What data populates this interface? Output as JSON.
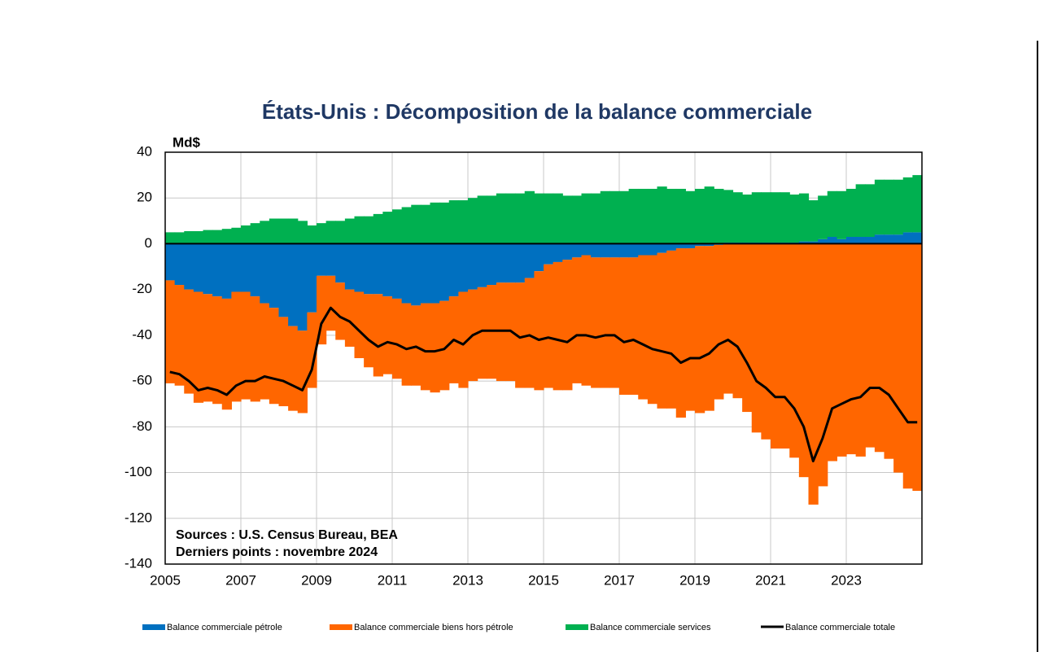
{
  "chart_data": {
    "type": "stacked-bar-line",
    "title": "États-Unis : Décomposition de la balance commerciale",
    "y_unit": "Md$",
    "annotations": [
      "Sources : U.S. Census Bureau, BEA",
      "Derniers points : novembre 2024"
    ],
    "x": [
      2005,
      2005.25,
      2005.5,
      2005.75,
      2006,
      2006.25,
      2006.5,
      2006.75,
      2007,
      2007.25,
      2007.5,
      2007.75,
      2008,
      2008.25,
      2008.5,
      2008.75,
      2009,
      2009.25,
      2009.5,
      2009.75,
      2010,
      2010.25,
      2010.5,
      2010.75,
      2011,
      2011.25,
      2011.5,
      2011.75,
      2012,
      2012.25,
      2012.5,
      2012.75,
      2013,
      2013.25,
      2013.5,
      2013.75,
      2014,
      2014.25,
      2014.5,
      2014.75,
      2015,
      2015.25,
      2015.5,
      2015.75,
      2016,
      2016.25,
      2016.5,
      2016.75,
      2017,
      2017.25,
      2017.5,
      2017.75,
      2018,
      2018.25,
      2018.5,
      2018.75,
      2019,
      2019.25,
      2019.5,
      2019.75,
      2020,
      2020.25,
      2020.5,
      2020.75,
      2021,
      2021.25,
      2021.5,
      2021.75,
      2022,
      2022.25,
      2022.5,
      2022.75,
      2023,
      2023.25,
      2023.5,
      2023.75,
      2024,
      2024.25,
      2024.5,
      2024.75
    ],
    "series": [
      {
        "name": "Balance commerciale pétrole",
        "color": "#0070c0",
        "kind": "bar",
        "values": [
          -16,
          -18,
          -20,
          -21,
          -22,
          -23,
          -24,
          -21,
          -21,
          -23,
          -26,
          -28,
          -32,
          -36,
          -38,
          -30,
          -14,
          -14,
          -17,
          -20,
          -21,
          -22,
          -22,
          -23,
          -24,
          -26,
          -27,
          -26,
          -26,
          -25,
          -23,
          -21,
          -20,
          -19,
          -18,
          -17,
          -17,
          -17,
          -15,
          -12,
          -9,
          -8,
          -7,
          -6,
          -5,
          -6,
          -6,
          -6,
          -6,
          -6,
          -5,
          -5,
          -4,
          -3,
          -2,
          -2,
          -1,
          -1,
          -0.5,
          0.5,
          0.5,
          0.5,
          0.5,
          0.5,
          0.5,
          0.5,
          0.5,
          1,
          1,
          2,
          3,
          2,
          3,
          3,
          3,
          4,
          4,
          4,
          5,
          5
        ]
      },
      {
        "name": "Balance commerciale biens hors pétrole",
        "color": "#ff6600",
        "kind": "bar",
        "values": [
          -45,
          -44,
          -45.5,
          -48.5,
          -47,
          -47,
          -48.5,
          -48,
          -47,
          -46,
          -42,
          -42,
          -39,
          -37,
          -36,
          -33,
          -30,
          -24,
          -25,
          -25,
          -29,
          -32,
          -36,
          -34,
          -35,
          -36,
          -35,
          -38,
          -39,
          -39,
          -38,
          -42,
          -40,
          -40,
          -41,
          -43,
          -43,
          -46,
          -48,
          -52,
          -54,
          -56,
          -57,
          -55,
          -57,
          -57,
          -57,
          -57,
          -60,
          -60,
          -63,
          -65,
          -68,
          -69,
          -74,
          -71,
          -73,
          -72,
          -67.5,
          -65.5,
          -67.5,
          -73.5,
          -82.5,
          -85.5,
          -89.5,
          -89.5,
          -93.5,
          -102,
          -114,
          -106,
          -95,
          -93,
          -92,
          -93,
          -89,
          -91,
          -94,
          -100,
          -107,
          -108
        ]
      },
      {
        "name": "Balance commerciale services",
        "color": "#00b050",
        "kind": "bar",
        "values": [
          5,
          5,
          5.5,
          5.5,
          6,
          6,
          6.5,
          7,
          8,
          9,
          10,
          11,
          11,
          11,
          10,
          8,
          9,
          10,
          10,
          11,
          12,
          12,
          13,
          14,
          15,
          16,
          17,
          17,
          18,
          18,
          19,
          19,
          20,
          21,
          21,
          22,
          22,
          22,
          23,
          22,
          22,
          22,
          21,
          21,
          22,
          22,
          23,
          23,
          23,
          24,
          24,
          24,
          25,
          24,
          24,
          23,
          24,
          25,
          24,
          23,
          22,
          21,
          22,
          22,
          22,
          22,
          21,
          21,
          18,
          19,
          20,
          21,
          21,
          23,
          23,
          24,
          24,
          24,
          24,
          25
        ]
      },
      {
        "name": "Balance commerciale totale",
        "color": "#000000",
        "kind": "line",
        "values": [
          -56,
          -57,
          -60,
          -64,
          -63,
          -64,
          -66,
          -62,
          -60,
          -60,
          -58,
          -59,
          -60,
          -62,
          -64,
          -55,
          -35,
          -28,
          -32,
          -34,
          -38,
          -42,
          -45,
          -43,
          -44,
          -46,
          -45,
          -47,
          -47,
          -46,
          -42,
          -44,
          -40,
          -38,
          -38,
          -38,
          -38,
          -41,
          -40,
          -42,
          -41,
          -42,
          -43,
          -40,
          -40,
          -41,
          -40,
          -40,
          -43,
          -42,
          -44,
          -46,
          -47,
          -48,
          -52,
          -50,
          -50,
          -48,
          -44,
          -42,
          -45,
          -52,
          -60,
          -63,
          -67,
          -67,
          -72,
          -80,
          -95,
          -85,
          -72,
          -70,
          -68,
          -67,
          -63,
          -63,
          -66,
          -72,
          -78,
          -78
        ]
      }
    ],
    "xlim": [
      2005,
      2025
    ],
    "xticks": [
      2005,
      2007,
      2009,
      2011,
      2013,
      2015,
      2017,
      2019,
      2021,
      2023
    ],
    "ylim": [
      -140,
      40
    ],
    "yticks": [
      -140,
      -120,
      -100,
      -80,
      -60,
      -40,
      -20,
      0,
      20,
      40
    ],
    "grid": true
  }
}
